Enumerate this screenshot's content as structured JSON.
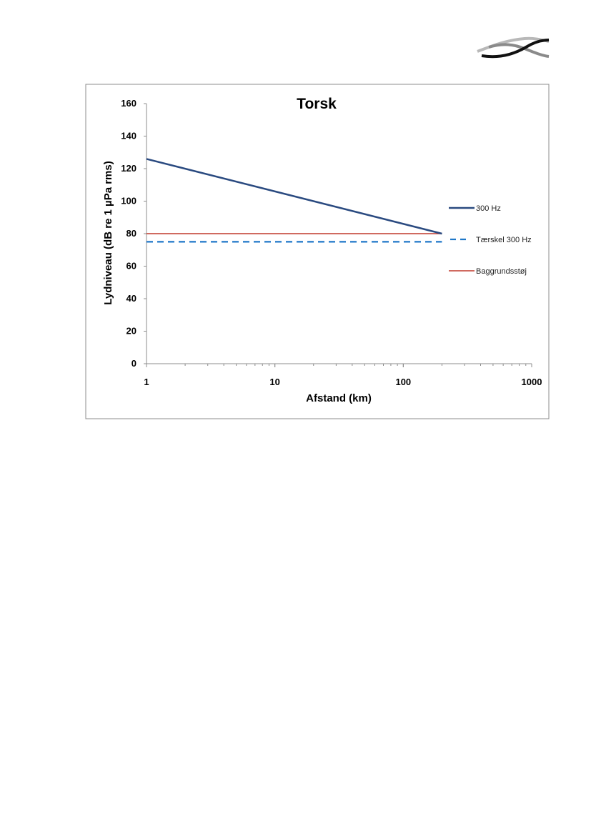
{
  "logo": {
    "name": "company-wave-logo"
  },
  "chart_data": {
    "type": "line",
    "title": "Torsk",
    "xlabel": "Afstand (km)",
    "ylabel": "Lydniveau (dB re 1 µPa rms)",
    "xscale": "log",
    "xlim": [
      1,
      1000
    ],
    "ylim": [
      0,
      160
    ],
    "xticks": [
      1,
      10,
      100,
      1000
    ],
    "xtick_labels": [
      "1",
      "10",
      "100",
      "1000"
    ],
    "yticks": [
      0,
      20,
      40,
      60,
      80,
      100,
      120,
      140,
      160
    ],
    "ytick_labels": [
      "0",
      "20",
      "40",
      "60",
      "80",
      "100",
      "120",
      "140",
      "160"
    ],
    "grid": false,
    "legend_position": "right",
    "series": [
      {
        "name": "300 Hz",
        "color": "#2a4a80",
        "style": "solid",
        "x": [
          1,
          200
        ],
        "y": [
          126,
          80
        ]
      },
      {
        "name": "Tærskel 300 Hz",
        "color": "#1f77c8",
        "style": "dashed",
        "x": [
          1,
          200
        ],
        "y": [
          75,
          75
        ]
      },
      {
        "name": "Baggrundsstøj",
        "color": "#c0392b",
        "style": "solid",
        "x": [
          1,
          200
        ],
        "y": [
          80,
          80
        ]
      }
    ]
  }
}
